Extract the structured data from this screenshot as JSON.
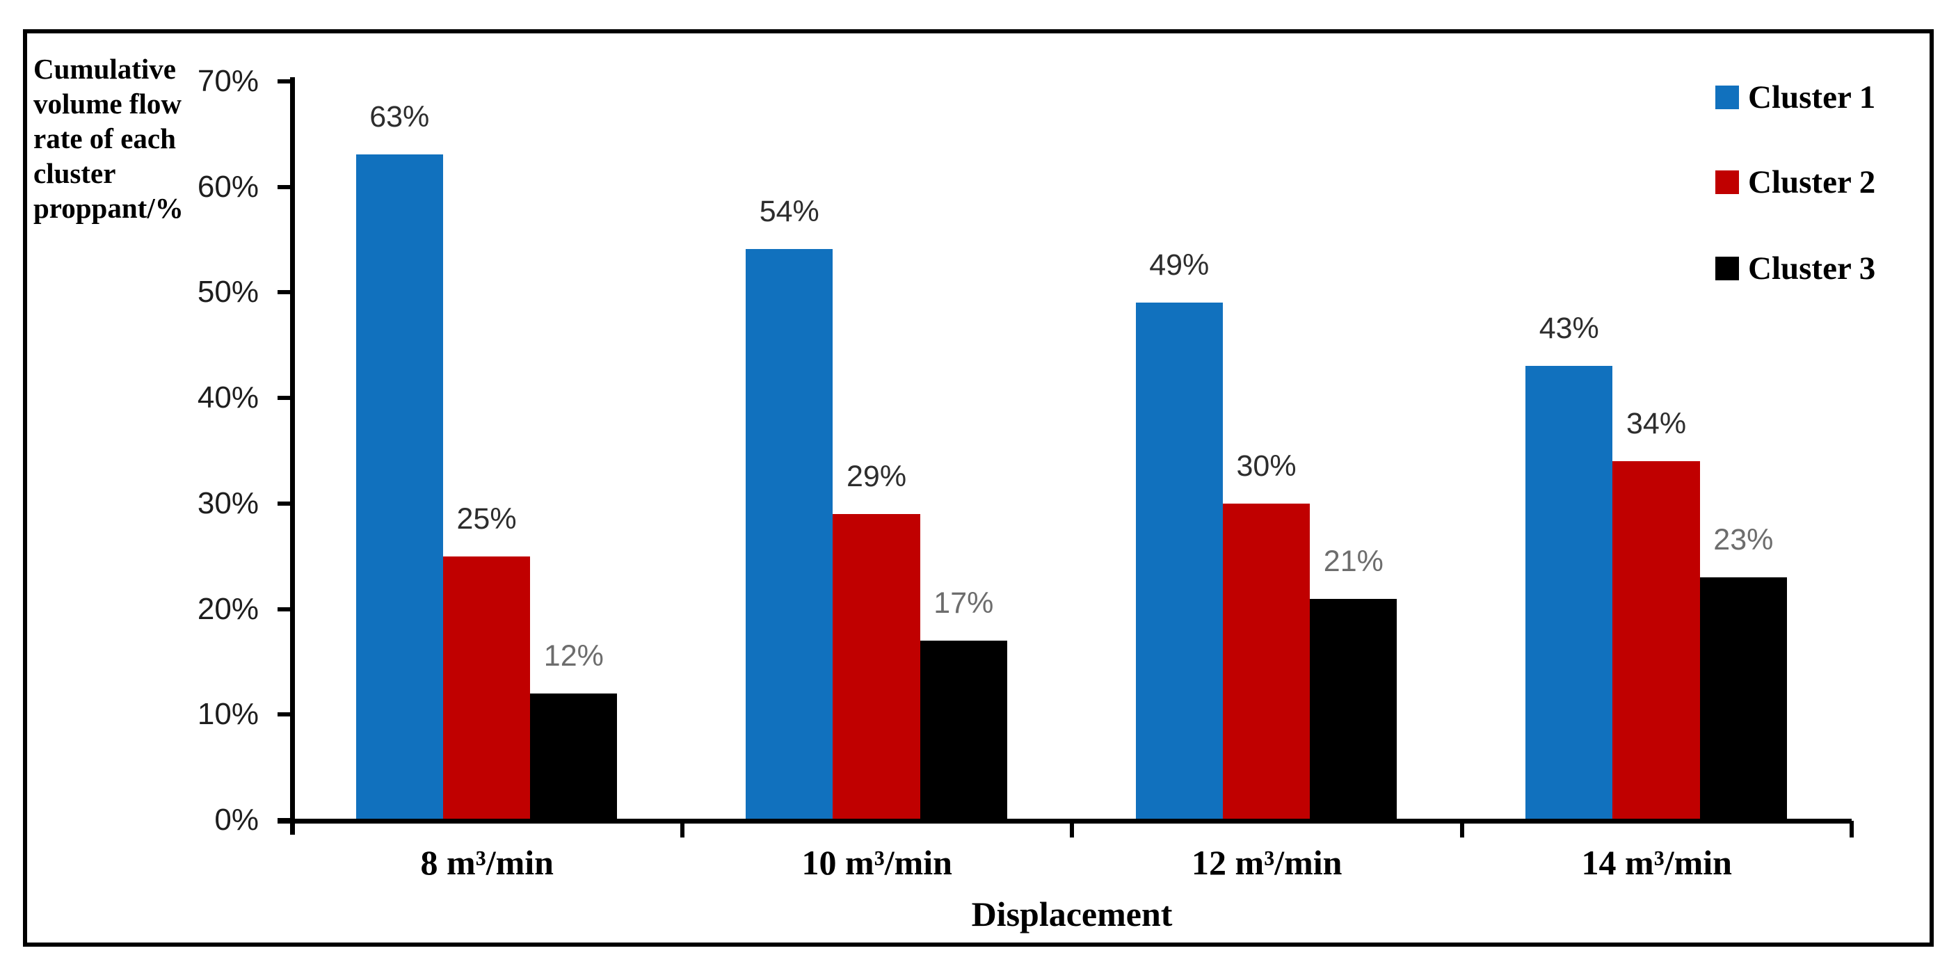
{
  "chart_data": {
    "type": "bar",
    "title": "",
    "ylabel": "Cumulative\nvolume flow\nrate of each\ncluster\nproppant/%",
    "xlabel": "Displacement",
    "categories": [
      "8 m³/min",
      "10 m³/min",
      "12 m³/min",
      "14 m³/min"
    ],
    "series": [
      {
        "name": "Cluster 1",
        "color": "#1171BE",
        "label_color": "#2d2d2d",
        "values": [
          63,
          54,
          49,
          43
        ]
      },
      {
        "name": "Cluster 2",
        "color": "#C00000",
        "label_color": "#2d2d2d",
        "values": [
          25,
          29,
          30,
          34
        ]
      },
      {
        "name": "Cluster 3",
        "color": "#000000",
        "label_color": "#6d6d6d",
        "values": [
          12,
          17,
          21,
          23
        ]
      }
    ],
    "y_axis": {
      "min": 0,
      "max": 70,
      "step": 10,
      "tick_labels_top_to_bottom": [
        "70%",
        "60%",
        "50%",
        "40%",
        "30%",
        "20%",
        "10%",
        "0%"
      ]
    },
    "data_label_suffix": "%",
    "legend_position": "top-right",
    "grid": false,
    "frame_color": "#000000",
    "axis_color": "#000000"
  }
}
